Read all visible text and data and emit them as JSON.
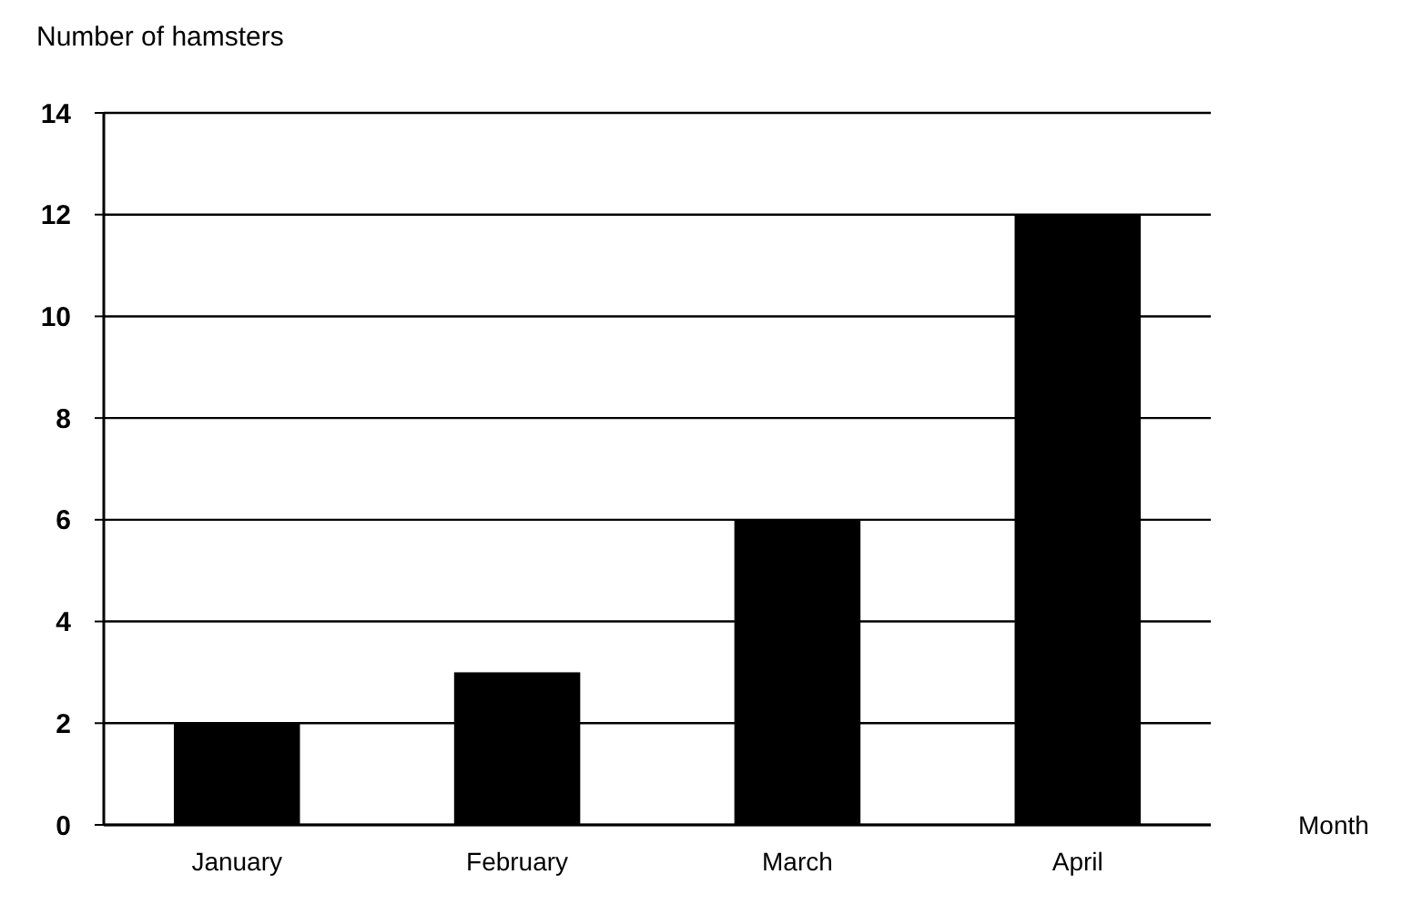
{
  "chart_data": {
    "type": "bar",
    "xlabel": "Month",
    "ylabel": "Number of hamsters",
    "categories": [
      "January",
      "February",
      "March",
      "April"
    ],
    "values": [
      2,
      3,
      6,
      12
    ],
    "color": "#000000",
    "ylim": [
      0,
      14
    ],
    "yticks": [
      0,
      2,
      4,
      6,
      8,
      10,
      12,
      14
    ],
    "grid": "y"
  }
}
